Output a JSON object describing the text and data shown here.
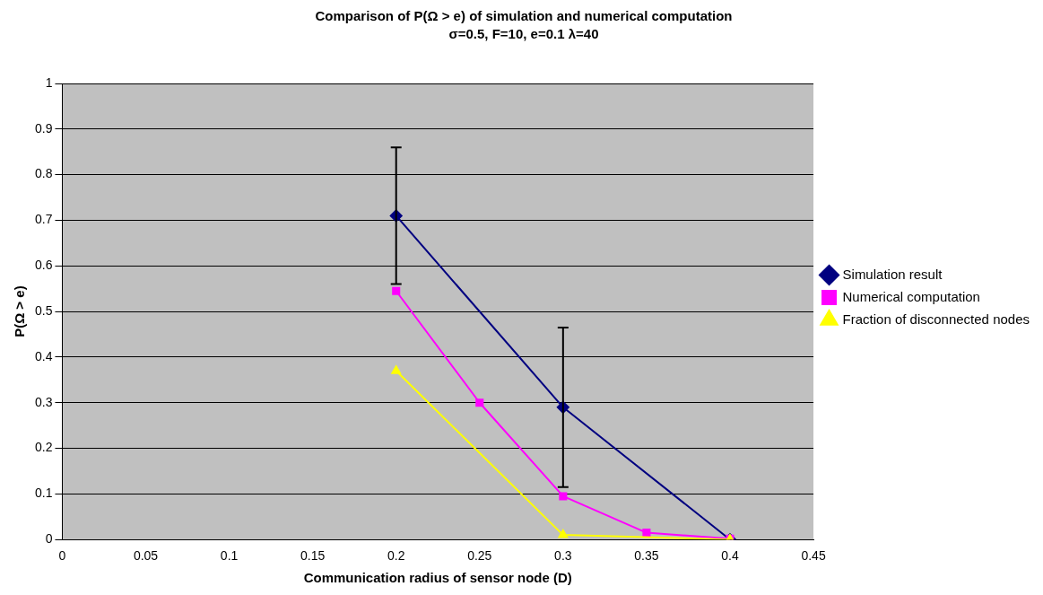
{
  "chart_data": {
    "type": "line",
    "title": "Comparison of P(Ω > e) of simulation and numerical computation",
    "subtitle": "σ=0.5, F=10, e=0.1 λ=40",
    "xlabel": "Communication radius of sensor node (D)",
    "ylabel": "P(Ω > e)",
    "xlim": [
      0,
      0.45
    ],
    "xticks": [
      0,
      0.05,
      0.1,
      0.15,
      0.2,
      0.25,
      0.3,
      0.35,
      0.4,
      0.45
    ],
    "ylim": [
      0,
      1
    ],
    "yticks": [
      0,
      0.1,
      0.2,
      0.3,
      0.4,
      0.5,
      0.6,
      0.7,
      0.8,
      0.9,
      1
    ],
    "grid": "y",
    "legend": "right",
    "line_style": "solid",
    "series": [
      {
        "name": "Simulation result",
        "color": "#000080",
        "marker": "diamond",
        "x": [
          0.2,
          0.3,
          0.4
        ],
        "values": [
          0.71,
          0.29,
          0
        ],
        "errors": [
          0.15,
          0.175,
          null
        ]
      },
      {
        "name": "Numerical computation",
        "color": "#ff00ff",
        "marker": "square",
        "x": [
          0.2,
          0.25,
          0.3,
          0.35,
          0.4
        ],
        "values": [
          0.545,
          0.3,
          0.095,
          0.015,
          0.002
        ]
      },
      {
        "name": "Fraction of disconnected nodes",
        "color": "#ffff00",
        "marker": "triangle",
        "x": [
          0.2,
          0.3,
          0.4
        ],
        "values": [
          0.37,
          0.01,
          0
        ]
      }
    ]
  }
}
